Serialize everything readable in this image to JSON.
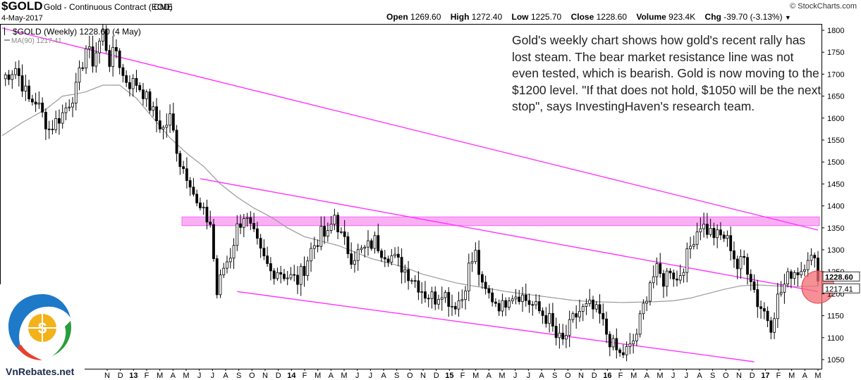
{
  "header": {
    "symbol": "$GOLD",
    "description": "Gold - Continuous Contract (EOD)",
    "exchange": "CME",
    "date": "4-May-2017",
    "brand": "© StockCharts.com",
    "open_label": "Open",
    "open": "1269.60",
    "high_label": "High",
    "high": "1272.40",
    "low_label": "Low",
    "low": "1225.70",
    "close_label": "Close",
    "close": "1228.60",
    "volume_label": "Volume",
    "volume": "923.4K",
    "chg_label": "Chg",
    "chg": "-39.70 (-3.13%)"
  },
  "legend": {
    "price": "$GOLD (Weekly) 1228.60 (4 May)",
    "ma": "MA(90) 1217.41"
  },
  "annotation": "Gold's weekly chart shows how gold's recent rally has lost steam. The bear market resistance line was not even tested, which is bearish. Gold is now moving to the $1200 level. \"If that does not hold, $1050 will be the next stop\", says InvestingHaven's research team.",
  "logo_text": "VnRebates.net",
  "colors": {
    "candle": "#000000",
    "ma_line": "#9a9a9a",
    "trendline": "#ff33ff",
    "resistance_band": "#f9b0f3",
    "highlight_circle": "#f26b73",
    "price_tag": "#ffffff"
  },
  "chart_data": {
    "type": "candlestick",
    "title": "$GOLD (Weekly)",
    "ylim": [
      1030,
      1810
    ],
    "y_ticks": [
      1050,
      1100,
      1150,
      1200,
      1250,
      1300,
      1350,
      1400,
      1450,
      1500,
      1550,
      1600,
      1650,
      1700,
      1750,
      1800
    ],
    "x_labels": [
      "N",
      "D",
      "13",
      "F",
      "M",
      "A",
      "M",
      "J",
      "J",
      "A",
      "S",
      "O",
      "N",
      "D",
      "14",
      "F",
      "M",
      "A",
      "M",
      "J",
      "J",
      "A",
      "S",
      "O",
      "N",
      "D",
      "15",
      "F",
      "M",
      "A",
      "M",
      "J",
      "J",
      "A",
      "S",
      "O",
      "N",
      "D",
      "16",
      "F",
      "M",
      "A",
      "M",
      "J",
      "J",
      "A",
      "S",
      "O",
      "N",
      "D",
      "17",
      "F",
      "M",
      "A",
      "M"
    ],
    "year_labels": [
      "13",
      "14",
      "15",
      "16",
      "17"
    ],
    "last_price_label": "1228.60",
    "ma_label": "1217.41",
    "week_start": "2012-10-15",
    "close_anchors": [
      [
        0,
        1690
      ],
      [
        4,
        1715
      ],
      [
        8,
        1640
      ],
      [
        10,
        1640
      ],
      [
        14,
        1575
      ],
      [
        18,
        1610
      ],
      [
        22,
        1665
      ],
      [
        25,
        1760
      ],
      [
        27,
        1730
      ],
      [
        30,
        1795
      ],
      [
        32,
        1730
      ],
      [
        34,
        1755
      ],
      [
        36,
        1695
      ],
      [
        38,
        1680
      ],
      [
        40,
        1680
      ],
      [
        42,
        1660
      ],
      [
        46,
        1595
      ],
      [
        48,
        1575
      ],
      [
        50,
        1600
      ],
      [
        53,
        1500
      ],
      [
        56,
        1460
      ],
      [
        58,
        1400
      ],
      [
        60,
        1380
      ],
      [
        62,
        1360
      ],
      [
        64,
        1200
      ],
      [
        66,
        1260
      ],
      [
        68,
        1290
      ],
      [
        70,
        1350
      ],
      [
        72,
        1380
      ],
      [
        75,
        1330
      ],
      [
        77,
        1290
      ],
      [
        80,
        1250
      ],
      [
        82,
        1255
      ],
      [
        85,
        1240
      ],
      [
        88,
        1230
      ],
      [
        90,
        1260
      ],
      [
        92,
        1300
      ],
      [
        95,
        1335
      ],
      [
        97,
        1330
      ],
      [
        99,
        1380
      ],
      [
        101,
        1330
      ],
      [
        104,
        1285
      ],
      [
        108,
        1300
      ],
      [
        111,
        1320
      ],
      [
        113,
        1300
      ],
      [
        116,
        1285
      ],
      [
        120,
        1255
      ],
      [
        123,
        1230
      ],
      [
        126,
        1200
      ],
      [
        129,
        1190
      ],
      [
        131,
        1210
      ],
      [
        134,
        1175
      ],
      [
        137,
        1190
      ],
      [
        139,
        1260
      ],
      [
        141,
        1290
      ],
      [
        143,
        1210
      ],
      [
        146,
        1190
      ],
      [
        149,
        1170
      ],
      [
        151,
        1200
      ],
      [
        154,
        1200
      ],
      [
        157,
        1180
      ],
      [
        160,
        1160
      ],
      [
        163,
        1140
      ],
      [
        165,
        1100
      ],
      [
        167,
        1090
      ],
      [
        170,
        1140
      ],
      [
        172,
        1160
      ],
      [
        175,
        1170
      ],
      [
        178,
        1150
      ],
      [
        180,
        1110
      ],
      [
        182,
        1080
      ],
      [
        184,
        1060
      ],
      [
        187,
        1075
      ],
      [
        189,
        1110
      ],
      [
        191,
        1170
      ],
      [
        193,
        1230
      ],
      [
        195,
        1250
      ],
      [
        197,
        1230
      ],
      [
        199,
        1260
      ],
      [
        201,
        1230
      ],
      [
        204,
        1285
      ],
      [
        206,
        1330
      ],
      [
        208,
        1360
      ],
      [
        210,
        1345
      ],
      [
        213,
        1330
      ],
      [
        215,
        1330
      ],
      [
        217,
        1310
      ],
      [
        219,
        1260
      ],
      [
        221,
        1280
      ],
      [
        223,
        1240
      ],
      [
        225,
        1180
      ],
      [
        227,
        1160
      ],
      [
        229,
        1130
      ],
      [
        231,
        1190
      ],
      [
        233,
        1220
      ],
      [
        235,
        1250
      ],
      [
        238,
        1255
      ],
      [
        240,
        1290
      ],
      [
        242,
        1268
      ],
      [
        243,
        1228.6
      ]
    ],
    "ma90_anchors": [
      [
        0,
        1560
      ],
      [
        6,
        1590
      ],
      [
        13,
        1620
      ],
      [
        18,
        1650
      ],
      [
        22,
        1655
      ],
      [
        25,
        1660
      ],
      [
        30,
        1675
      ],
      [
        35,
        1675
      ],
      [
        40,
        1645
      ],
      [
        45,
        1600
      ],
      [
        50,
        1555
      ],
      [
        55,
        1520
      ],
      [
        60,
        1490
      ],
      [
        65,
        1450
      ],
      [
        70,
        1420
      ],
      [
        75,
        1395
      ],
      [
        80,
        1375
      ],
      [
        85,
        1350
      ],
      [
        90,
        1330
      ],
      [
        95,
        1320
      ],
      [
        100,
        1310
      ],
      [
        105,
        1295
      ],
      [
        110,
        1280
      ],
      [
        115,
        1270
      ],
      [
        120,
        1260
      ],
      [
        125,
        1245
      ],
      [
        130,
        1235
      ],
      [
        135,
        1225
      ],
      [
        140,
        1218
      ],
      [
        145,
        1212
      ],
      [
        150,
        1205
      ],
      [
        155,
        1200
      ],
      [
        160,
        1195
      ],
      [
        165,
        1190
      ],
      [
        170,
        1185
      ],
      [
        175,
        1182
      ],
      [
        180,
        1181
      ],
      [
        185,
        1180
      ],
      [
        190,
        1181
      ],
      [
        195,
        1182
      ],
      [
        200,
        1184
      ],
      [
        205,
        1190
      ],
      [
        210,
        1200
      ],
      [
        215,
        1210
      ],
      [
        220,
        1218
      ],
      [
        225,
        1220
      ],
      [
        230,
        1218
      ],
      [
        235,
        1216
      ],
      [
        240,
        1217
      ],
      [
        243,
        1217.41
      ]
    ],
    "trendlines": [
      {
        "name": "bear market resistance",
        "points": [
          [
            0,
            1805
          ],
          [
            243,
            1345
          ]
        ]
      },
      {
        "name": "channel upper",
        "points": [
          [
            59,
            1462
          ],
          [
            243,
            1205
          ]
        ]
      },
      {
        "name": "channel lower",
        "points": [
          [
            70,
            1205
          ],
          [
            224,
            1045
          ]
        ]
      }
    ],
    "resistance_band": {
      "low": 1355,
      "high": 1375
    },
    "highlight_level": 1215,
    "grid": false
  }
}
